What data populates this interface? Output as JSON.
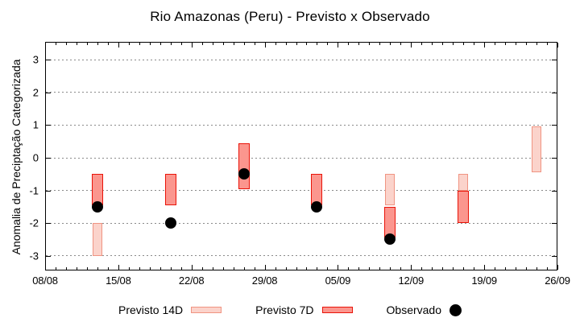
{
  "chart_data": {
    "type": "candlestick-range",
    "title": "Rio Amazonas (Peru) - Previsto x Observado",
    "ylabel": "Anomalia de Preciptação Categorizada",
    "xlabel": "",
    "grid": "horizontal-dotted",
    "legend_position": "bottom-center",
    "y_ticks": [
      3,
      2,
      1,
      0,
      -1,
      -2,
      -3
    ],
    "ylim": [
      -3.45,
      3.55
    ],
    "x_tick_labels": [
      "08/08",
      "15/08",
      "22/08",
      "29/08",
      "05/09",
      "12/09",
      "19/09",
      "26/09"
    ],
    "x_tick_days": [
      0,
      7,
      14,
      21,
      28,
      35,
      42,
      49
    ],
    "xlim_days": [
      0,
      49
    ],
    "minor_x_tick_every_days": 1,
    "clusters": [
      {
        "date": "13/08",
        "day": 5,
        "previsto_14d": [
          -2.0,
          -3.0
        ],
        "previsto_7d": [
          -0.5,
          -1.45
        ],
        "observado": -1.5
      },
      {
        "date": "20/08",
        "day": 12,
        "previsto_14d": null,
        "previsto_7d": [
          -0.5,
          -1.45
        ],
        "observado": -2.0
      },
      {
        "date": "27/08",
        "day": 19,
        "previsto_14d": null,
        "previsto_7d": [
          0.45,
          -0.95
        ],
        "observado": -0.5
      },
      {
        "date": "03/09",
        "day": 26,
        "previsto_14d": null,
        "previsto_7d": [
          -0.5,
          -1.45
        ],
        "observado": -1.5
      },
      {
        "date": "10/09",
        "day": 33,
        "previsto_14d": [
          -0.5,
          -1.45
        ],
        "previsto_7d": [
          -1.5,
          -2.45
        ],
        "observado": -2.5
      },
      {
        "date": "17/09",
        "day": 40,
        "previsto_14d": [
          -0.5,
          -1.0
        ],
        "previsto_7d": [
          -1.0,
          -2.0
        ],
        "observado": null
      },
      {
        "date": "24/09",
        "day": 47,
        "previsto_14d": [
          0.95,
          -0.45
        ],
        "previsto_7d": null,
        "observado": null
      }
    ],
    "colors": {
      "previsto14d_fill": "#fbd3cb",
      "previsto14d_border": "#f09482",
      "previsto7d_fill": "#fb968e",
      "previsto7d_border": "#e91409",
      "observado": "#000000",
      "gridline": "#8a8a8a",
      "axis": "#000000"
    },
    "legend": [
      {
        "label": "Previsto 14D",
        "type": "box",
        "fill": "#fbd3cb",
        "border": "#f09482"
      },
      {
        "label": "Previsto 7D",
        "type": "box",
        "fill": "#fb968e",
        "border": "#e91409"
      },
      {
        "label": "Observado",
        "type": "dot",
        "fill": "#000000"
      }
    ]
  }
}
